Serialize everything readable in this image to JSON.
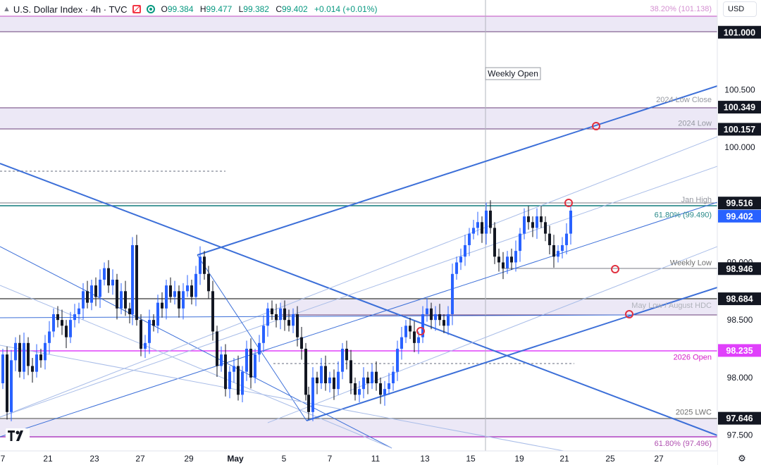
{
  "header": {
    "title": "U.S. Dollar Index · 4h · TVC",
    "ohlc": [
      {
        "k": "O",
        "v": "99.384"
      },
      {
        "k": "H",
        "v": "99.477"
      },
      {
        "k": "L",
        "v": "99.382"
      },
      {
        "k": "C",
        "v": "99.402"
      }
    ],
    "change": "+0.014 (+0.01%)",
    "currency": "USD"
  },
  "chart_data": {
    "type": "candlestick",
    "title": "",
    "ylim": [
      97.43,
      101.5
    ],
    "x_ticks": [
      "7",
      "21",
      "23",
      "27",
      "29",
      "May",
      "5",
      "7",
      "11",
      "13",
      "15",
      "19",
      "21",
      "25",
      "27"
    ],
    "y_ticks": [
      "101.000",
      "100.500",
      "100.000",
      "99.000",
      "98.500",
      "98.000",
      "97.500"
    ],
    "price_boxes": [
      {
        "value": 101.0,
        "label": "101.000",
        "style": "dark"
      },
      {
        "value": 100.349,
        "label": "100.349",
        "style": "dark"
      },
      {
        "value": 100.157,
        "label": "100.157",
        "style": "dark"
      },
      {
        "value": 99.516,
        "label": "99.516",
        "style": "dark"
      },
      {
        "value": 99.402,
        "label": "99.402",
        "style": "blue"
      },
      {
        "value": 98.946,
        "label": "98.946",
        "style": "dark"
      },
      {
        "value": 98.684,
        "label": "98.684",
        "style": "dark"
      },
      {
        "value": 98.235,
        "label": "98.235",
        "style": "magenta"
      },
      {
        "value": 97.646,
        "label": "97.646",
        "style": "dark"
      }
    ],
    "annotations": [
      {
        "text": "38.20% (101.138)",
        "value": 101.138,
        "color": "#d48fd1"
      },
      {
        "text": "2024 Low Close",
        "value": 100.349,
        "color": "#9598a1"
      },
      {
        "text": "2024 Low",
        "value": 100.157,
        "color": "#9598a1"
      },
      {
        "text": "Jan High",
        "value": 99.516,
        "color": "#9598a1"
      },
      {
        "text": "61.80% (99.490)",
        "value": 99.49,
        "color": "#2a8a8a"
      },
      {
        "text": "Weekly Low",
        "value": 98.946,
        "color": "#707070"
      },
      {
        "text": "May Low / August HDC",
        "value": 98.684,
        "color": "#b0b3bb"
      },
      {
        "text": "2026 Open",
        "value": 98.235,
        "color": "#d41fc8"
      },
      {
        "text": "2025 LWC",
        "value": 97.646,
        "color": "#707070"
      },
      {
        "text": "61.80% (97.496)",
        "value": 97.496,
        "color": "#b050b0"
      }
    ],
    "weekly_open_label": "Weekly Open",
    "bull_color": "#2962ff",
    "bear_color": "#131722",
    "zone_color": "#ece8f6"
  },
  "footer": {
    "settings_icon": "gear-icon"
  }
}
